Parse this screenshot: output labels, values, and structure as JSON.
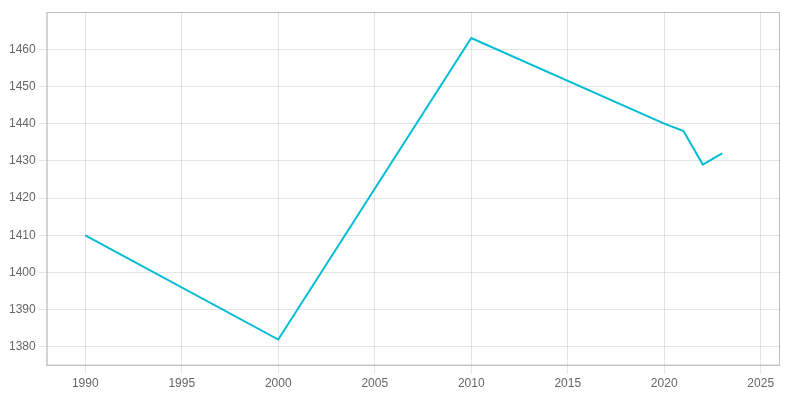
{
  "chart_data": {
    "type": "line",
    "x": [
      1990,
      2000,
      2010,
      2020,
      2021,
      2022,
      2023
    ],
    "values": [
      1410,
      1382,
      1463,
      1440,
      1438,
      1429,
      1432
    ],
    "color": "#00BCD4",
    "xlim": [
      1988,
      2026
    ],
    "ylim": [
      1375,
      1470
    ],
    "xticks": [
      1990,
      1995,
      2000,
      2005,
      2010,
      2015,
      2020,
      2025
    ],
    "yticks": [
      1380,
      1390,
      1400,
      1410,
      1420,
      1430,
      1440,
      1450,
      1460
    ],
    "grid": true
  }
}
